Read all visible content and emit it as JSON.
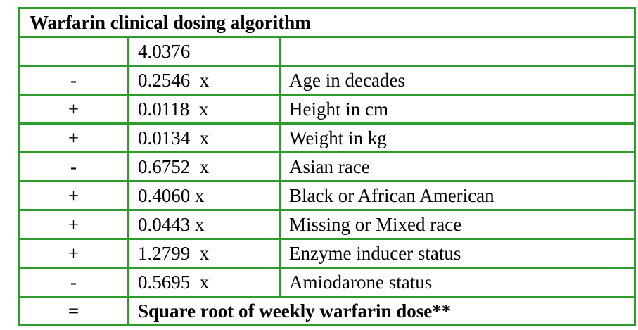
{
  "table": {
    "title": "Warfarin clinical dosing algorithm",
    "intercept": "4.0376",
    "rows": [
      {
        "op": "-",
        "coef": "0.2546  x",
        "desc": "Age in decades"
      },
      {
        "op": "+",
        "coef": "0.0118  x",
        "desc": "Height in cm"
      },
      {
        "op": "+",
        "coef": "0.0134  x",
        "desc": "Weight in kg"
      },
      {
        "op": "-",
        "coef": "0.6752  x",
        "desc": "Asian race"
      },
      {
        "op": "+",
        "coef": "0.4060 x",
        "desc": "Black or African American"
      },
      {
        "op": "+",
        "coef": "0.0443 x",
        "desc": "Missing or Mixed race"
      },
      {
        "op": "+",
        "coef": "1.2799  x",
        "desc": "Enzyme inducer status"
      },
      {
        "op": "-",
        "coef": "0.5695  x",
        "desc": "Amiodarone status"
      }
    ],
    "result_op": "=",
    "result_label": "Square root of weekly warfarin dose**"
  },
  "colors": {
    "border": "#2d9c2d"
  }
}
